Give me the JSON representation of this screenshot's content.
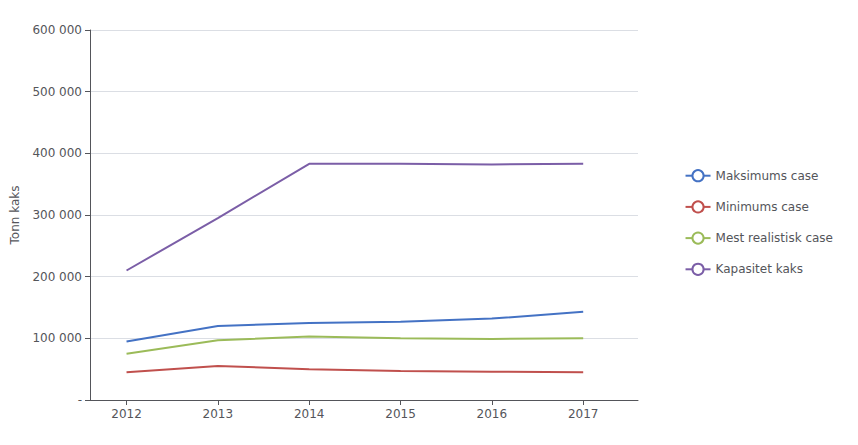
{
  "chart_data": {
    "type": "line",
    "x": [
      2012,
      2013,
      2014,
      2015,
      2016,
      2017
    ],
    "series": [
      {
        "name": "Maksimums case",
        "color": "#4472C4",
        "values": [
          95000,
          120000,
          125000,
          127000,
          132000,
          143000
        ]
      },
      {
        "name": "Minimums case",
        "color": "#C0504D",
        "values": [
          45000,
          55000,
          50000,
          47000,
          46000,
          45000
        ]
      },
      {
        "name": "Mest realistisk case",
        "color": "#9BBB59",
        "values": [
          75000,
          97000,
          103000,
          100000,
          99000,
          100000
        ]
      },
      {
        "name": "Kapasitet kaks",
        "color": "#7B5EA7",
        "values": [
          210000,
          295000,
          383000,
          383000,
          382000,
          383000
        ]
      }
    ],
    "ylabel": "Tonn kaks",
    "xlim": [
      2011.6,
      2017.6
    ],
    "xticks": [
      2012,
      2013,
      2014,
      2015,
      2016,
      2017
    ],
    "ylim": [
      0,
      600000
    ],
    "yticks": [
      {
        "value": 0,
        "label": "-"
      },
      {
        "value": 100000,
        "label": "100 000"
      },
      {
        "value": 200000,
        "label": "200 000"
      },
      {
        "value": 300000,
        "label": "300 000"
      },
      {
        "value": 400000,
        "label": "400 000"
      },
      {
        "value": 500000,
        "label": "500 000"
      },
      {
        "value": 600000,
        "label": "600 000"
      }
    ],
    "grid": true,
    "legend": "right"
  }
}
